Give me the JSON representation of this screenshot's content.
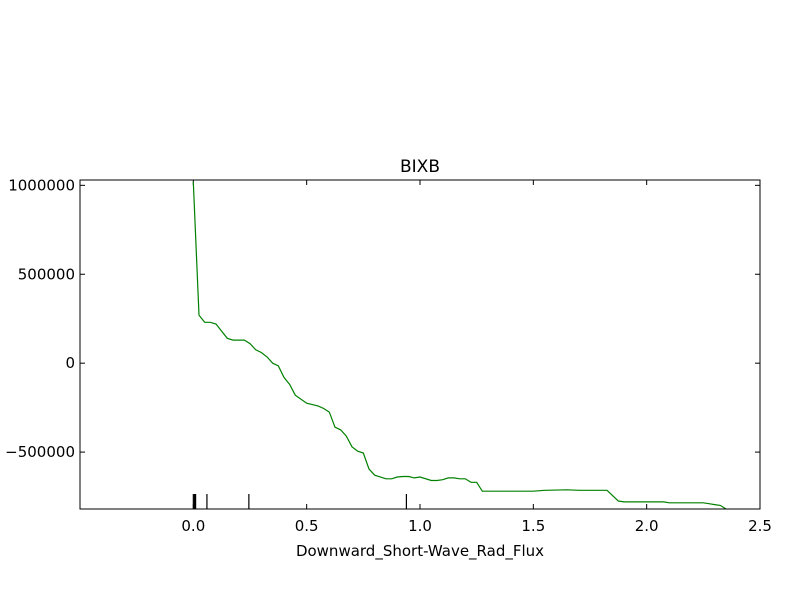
{
  "chart_data": {
    "type": "line",
    "title": "BIXB",
    "xlabel": "Downward_Short-Wave_Rad_Flux",
    "ylabel": "",
    "xlim": [
      -0.5,
      2.5
    ],
    "ylim": [
      -820000,
      1030000
    ],
    "xticks": [
      0.0,
      0.5,
      1.0,
      1.5,
      2.0,
      2.5
    ],
    "xtick_labels": [
      "0.0",
      "0.5",
      "1.0",
      "1.5",
      "2.0",
      "2.5"
    ],
    "yticks": [
      1000000,
      500000,
      0,
      -500000
    ],
    "ytick_labels": [
      "1000000",
      "500000",
      "0",
      "−500000"
    ],
    "grid": false,
    "legend": "none",
    "series": [
      {
        "color": "#008000",
        "x": [
          0.0,
          0.025,
          0.05,
          0.075,
          0.1,
          0.125,
          0.15,
          0.175,
          0.2,
          0.225,
          0.25,
          0.275,
          0.3,
          0.325,
          0.35,
          0.375,
          0.4,
          0.425,
          0.45,
          0.5,
          0.55,
          0.575,
          0.6,
          0.625,
          0.65,
          0.675,
          0.7,
          0.725,
          0.75,
          0.775,
          0.8,
          0.85,
          0.875,
          0.9,
          0.925,
          0.95,
          0.975,
          1.0,
          1.05,
          1.075,
          1.1,
          1.125,
          1.15,
          1.175,
          1.2,
          1.225,
          1.25,
          1.275,
          1.5,
          1.55,
          1.65,
          1.7,
          1.75,
          1.8,
          1.825,
          1.85,
          1.875,
          1.9,
          2.05,
          2.075,
          2.1,
          2.25,
          2.275,
          2.3,
          2.325,
          2.35
        ],
        "y": [
          1020000,
          270000,
          230000,
          230000,
          220000,
          180000,
          140000,
          130000,
          130000,
          130000,
          110000,
          75000,
          60000,
          35000,
          0,
          -15000,
          -80000,
          -120000,
          -180000,
          -225000,
          -240000,
          -255000,
          -275000,
          -360000,
          -375000,
          -410000,
          -470000,
          -495000,
          -505000,
          -595000,
          -630000,
          -650000,
          -650000,
          -640000,
          -637000,
          -637000,
          -645000,
          -640000,
          -660000,
          -660000,
          -655000,
          -645000,
          -645000,
          -650000,
          -650000,
          -670000,
          -670000,
          -720000,
          -720000,
          -715000,
          -712000,
          -715000,
          -715000,
          -715000,
          -715000,
          -745000,
          -775000,
          -780000,
          -780000,
          -780000,
          -785000,
          -785000,
          -790000,
          -795000,
          -800000,
          -820000
        ]
      }
    ],
    "rug": [
      0.0,
      0.005,
      0.01,
      0.06,
      0.245,
      0.94
    ]
  }
}
